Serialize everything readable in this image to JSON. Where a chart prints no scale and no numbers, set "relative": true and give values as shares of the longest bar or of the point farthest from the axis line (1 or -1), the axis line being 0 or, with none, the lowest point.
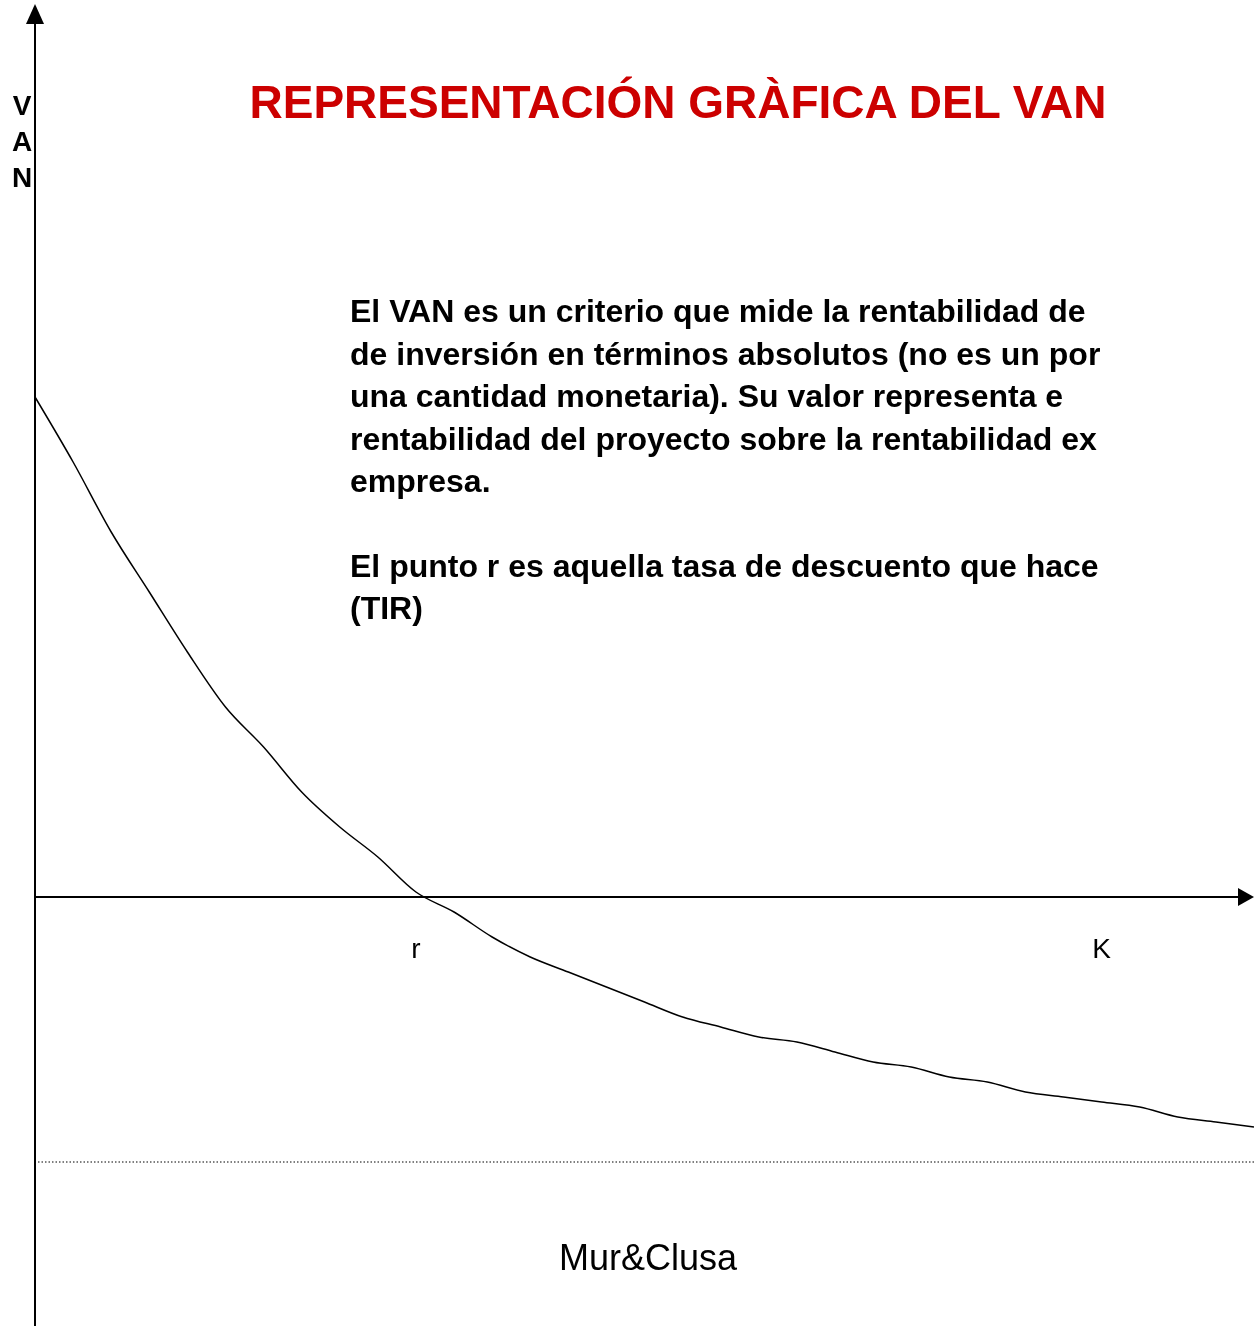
{
  "chart_data": {
    "type": "line",
    "title": "REPRESENTACIÓN GRÀFICA DEL VAN",
    "relative": true,
    "color": "#000000",
    "categories": [
      null,
      null,
      null,
      null,
      null,
      null,
      null,
      null,
      null,
      null,
      "r",
      null,
      null,
      null,
      null,
      null,
      null,
      null,
      null,
      null,
      null,
      null,
      null,
      null,
      null,
      null,
      null,
      null,
      "K",
      null,
      null,
      null,
      null
    ],
    "values": [
      1.0,
      0.87,
      0.73,
      0.61,
      0.49,
      0.38,
      0.3,
      0.21,
      0.14,
      0.08,
      0.01,
      -0.03,
      -0.08,
      -0.12,
      -0.15,
      -0.18,
      -0.21,
      -0.24,
      -0.26,
      -0.28,
      -0.29,
      -0.31,
      -0.33,
      -0.34,
      -0.36,
      -0.37,
      -0.39,
      -0.4,
      -0.41,
      -0.42,
      -0.44,
      -0.45,
      -0.46
    ],
    "ref_lines": [
      {
        "axis": "y",
        "value": -0.53,
        "line_style": "dotted",
        "color": "#000000"
      }
    ],
    "annotations": [
      "VAN",
      "El VAN es un criterio que mide la rentabilidad de",
      "de inversión en términos absolutos (no es un por",
      "una cantidad monetaria). Su valor representa e",
      "rentabilidad del proyecto sobre la rentabilidad ex",
      "empresa.",
      "El punto r es aquella tasa de descuento que hace",
      "(TIR)",
      "Mur&Clusa"
    ]
  }
}
